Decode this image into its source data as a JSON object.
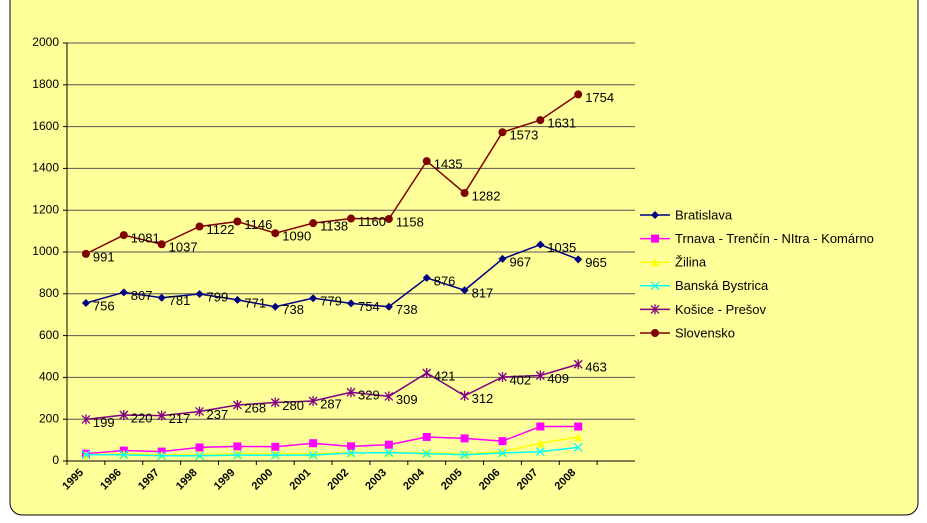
{
  "chart_data": {
    "type": "line",
    "categories": [
      "1995",
      "1996",
      "1997",
      "1998",
      "1999",
      "2000",
      "2001",
      "2002",
      "2003",
      "2004",
      "2005",
      "2006",
      "2007",
      "2008",
      null
    ],
    "series": [
      {
        "name": "Bratislava",
        "color": "#000080",
        "marker": "diamond",
        "show_labels": true,
        "values": [
          756,
          807,
          781,
          799,
          771,
          738,
          779,
          754,
          738,
          876,
          817,
          967,
          1035,
          965,
          null
        ]
      },
      {
        "name": "Trnava - Trenčín - NItra - Komárno",
        "color": "#ff00ff",
        "marker": "square",
        "show_labels": false,
        "values": [
          35,
          50,
          45,
          65,
          70,
          68,
          85,
          70,
          78,
          115,
          108,
          95,
          165,
          165,
          null
        ]
      },
      {
        "name": "Žilina",
        "color": "#ffff00",
        "marker": "triangle",
        "show_labels": false,
        "values": [
          30,
          35,
          30,
          30,
          35,
          35,
          35,
          40,
          40,
          40,
          35,
          45,
          85,
          115,
          null
        ]
      },
      {
        "name": "Banská Bystrica",
        "color": "#00ffff",
        "marker": "x",
        "show_labels": false,
        "values": [
          30,
          30,
          25,
          25,
          28,
          28,
          28,
          38,
          40,
          35,
          30,
          38,
          45,
          65,
          null
        ]
      },
      {
        "name": "Košice - Prešov",
        "color": "#800080",
        "marker": "star",
        "show_labels": true,
        "values": [
          199,
          220,
          217,
          237,
          268,
          280,
          287,
          329,
          309,
          421,
          312,
          402,
          409,
          463,
          null
        ]
      },
      {
        "name": "Slovensko",
        "color": "#800000",
        "marker": "circle",
        "show_labels": true,
        "values": [
          991,
          1081,
          1037,
          1122,
          1146,
          1090,
          1138,
          1160,
          1158,
          1435,
          1282,
          1573,
          1631,
          1754,
          null
        ]
      }
    ],
    "ylim": [
      0,
      2000
    ],
    "yticks": [
      0,
      200,
      400,
      600,
      800,
      1000,
      1200,
      1400,
      1600,
      1800,
      2000
    ],
    "grid": true,
    "legend": "right"
  }
}
